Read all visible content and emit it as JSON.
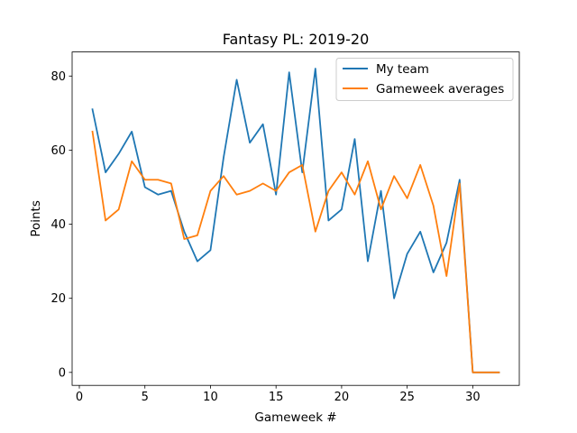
{
  "chart_data": {
    "type": "line",
    "title": "Fantasy PL: 2019-20",
    "xlabel": "Gameweek #",
    "ylabel": "Points",
    "xlim": [
      -0.55,
      33.55
    ],
    "ylim": [
      -3.5,
      86.5
    ],
    "xticks": [
      0,
      5,
      10,
      15,
      20,
      25,
      30
    ],
    "yticks": [
      0,
      20,
      40,
      60,
      80
    ],
    "legend": "top-right",
    "grid": false,
    "x": [
      1,
      2,
      3,
      4,
      5,
      6,
      7,
      8,
      9,
      10,
      11,
      12,
      13,
      14,
      15,
      16,
      17,
      18,
      19,
      20,
      21,
      22,
      23,
      24,
      25,
      26,
      27,
      28,
      29,
      30,
      31,
      32
    ],
    "series": [
      {
        "name": "My team",
        "color": "#1f77b4",
        "values": [
          71,
          54,
          59,
          65,
          50,
          48,
          49,
          38,
          30,
          33,
          58,
          79,
          62,
          67,
          48,
          81,
          54,
          82,
          41,
          44,
          63,
          30,
          49,
          20,
          32,
          38,
          27,
          35,
          52,
          0,
          0,
          0
        ]
      },
      {
        "name": "Gameweek averages",
        "color": "#ff7f0e",
        "values": [
          65,
          41,
          44,
          57,
          52,
          52,
          51,
          36,
          37,
          49,
          53,
          48,
          49,
          51,
          49,
          54,
          56,
          38,
          49,
          54,
          48,
          57,
          44,
          53,
          47,
          56,
          45,
          26,
          51,
          0,
          0,
          0
        ]
      }
    ]
  }
}
